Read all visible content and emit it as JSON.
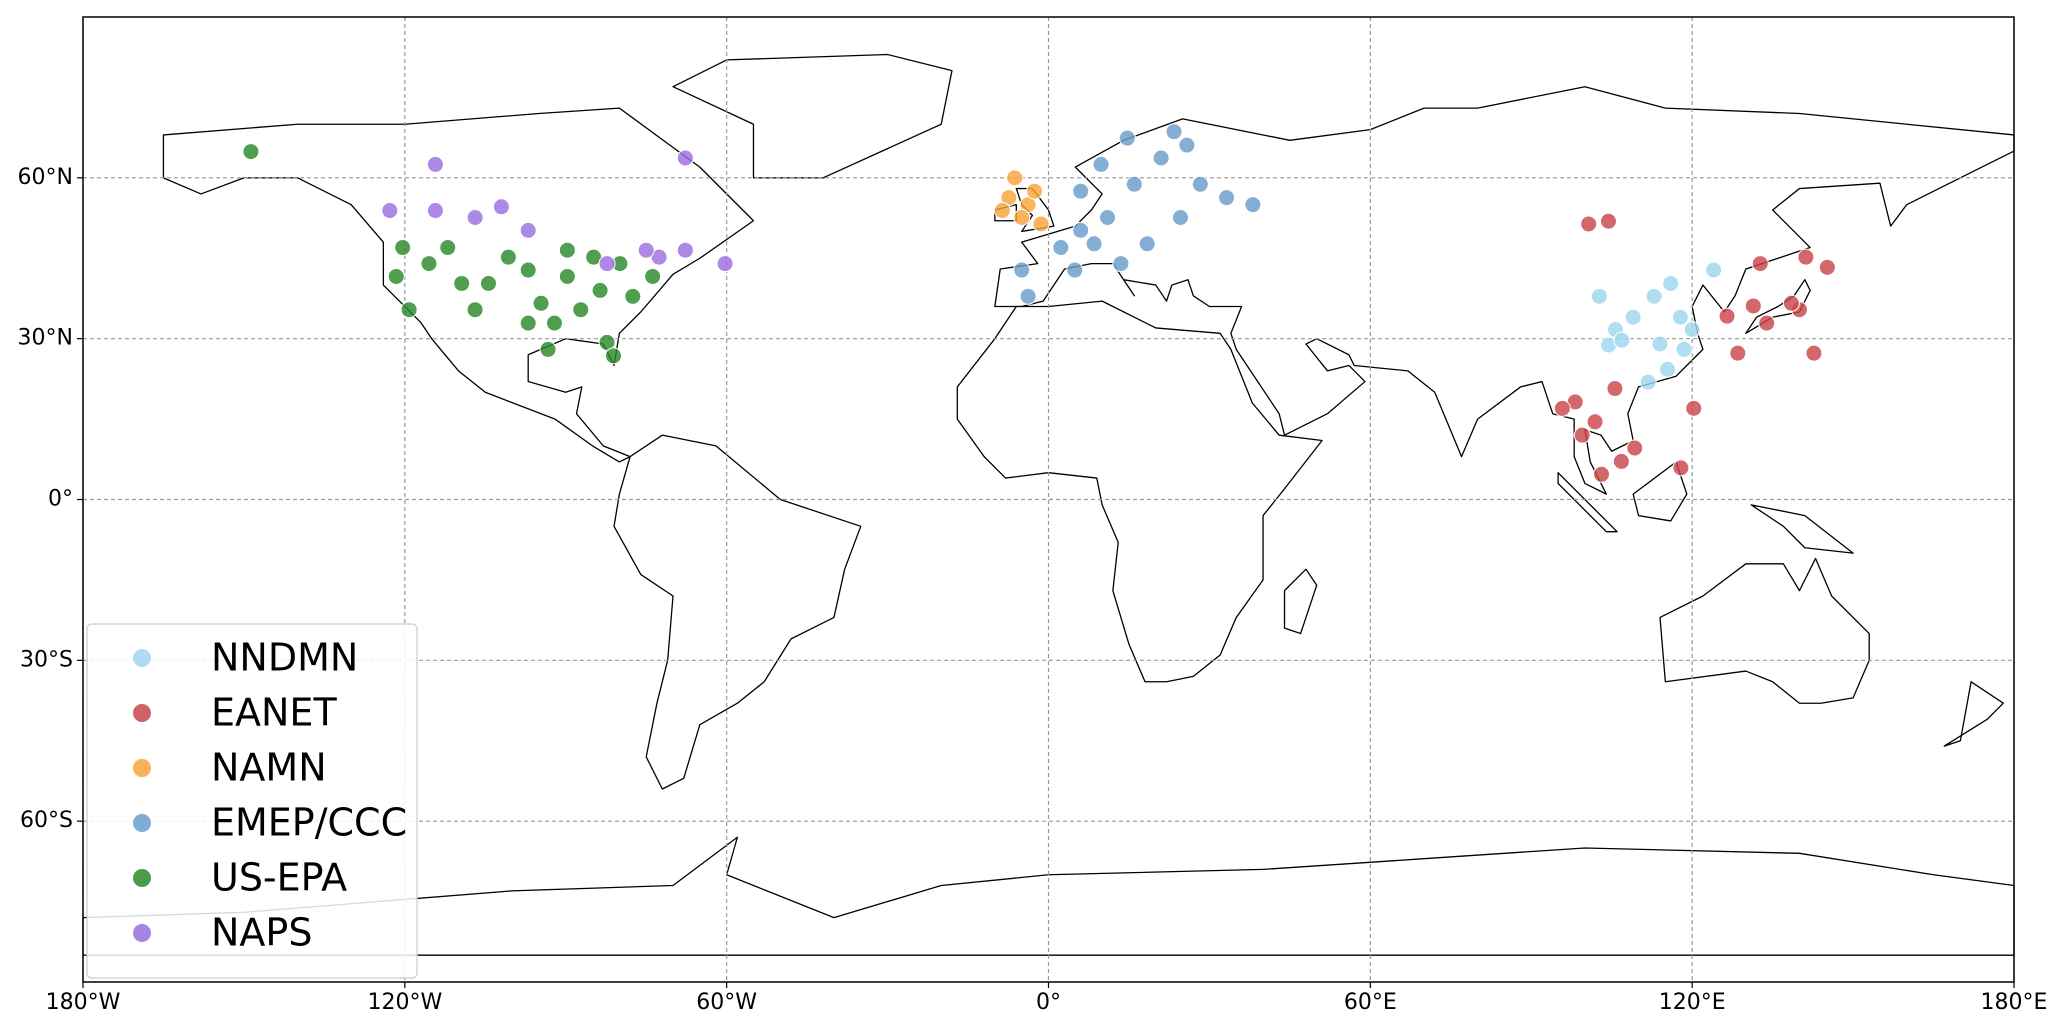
{
  "chart_data": {
    "type": "scatter",
    "xlim": [
      -180,
      180
    ],
    "ylim": [
      -90,
      90
    ],
    "xticks": [
      {
        "value": -180,
        "label": "180°W"
      },
      {
        "value": -120,
        "label": "120°W"
      },
      {
        "value": -60,
        "label": "60°W"
      },
      {
        "value": 0,
        "label": "0°"
      },
      {
        "value": 60,
        "label": "60°E"
      },
      {
        "value": 120,
        "label": "120°E"
      },
      {
        "value": 180,
        "label": "180°E"
      }
    ],
    "yticks": [
      {
        "value": 60,
        "label": "60°N"
      },
      {
        "value": 30,
        "label": "30°N"
      },
      {
        "value": 0,
        "label": "0°"
      },
      {
        "value": -30,
        "label": "30°S"
      },
      {
        "value": -60,
        "label": "60°S"
      }
    ],
    "grid": true,
    "legend": "lower left",
    "series": [
      {
        "name": "NNDMN",
        "color": "#9fd7ee",
        "x": [
          102.7,
          105.7,
          109,
          112.9,
          116,
          117.8,
          114,
          120,
          104.4,
          124,
          111.8,
          115.4,
          106.9,
          118.5
        ],
        "values": [
          37.9,
          31.7,
          34,
          37.9,
          40.3,
          34,
          29,
          31.7,
          28.8,
          42.8,
          21.9,
          24.3,
          29.7,
          28
        ]
      },
      {
        "name": "EANET",
        "color": "#c8474b",
        "x": [
          100.7,
          104.4,
          133.9,
          140,
          141.2,
          138.5,
          145.2,
          142.7,
          128.5,
          132.7,
          126.5,
          131.4,
          98.2,
          101.9,
          105.6,
          109.3,
          103.1,
          106.8,
          120.3,
          117.9,
          99.5,
          95.8
        ],
        "values": [
          51.4,
          51.9,
          32.9,
          35.4,
          45.2,
          36.6,
          43.3,
          27.3,
          27.3,
          44,
          34.2,
          36.1,
          18.2,
          14.5,
          20.7,
          9.6,
          4.7,
          7.1,
          17,
          5.9,
          12,
          17
        ]
      },
      {
        "name": "NAMN",
        "color": "#f9a33a",
        "x": [
          -6.3,
          -3.8,
          -5,
          -2.6,
          -1.4,
          -7.4,
          -8.6
        ],
        "values": [
          60,
          55,
          52.6,
          57.5,
          51.4,
          56.3,
          53.9
        ]
      },
      {
        "name": "EMEP/CCC",
        "color": "#6a9ccb",
        "x": [
          -5,
          -3.8,
          2.3,
          6,
          11,
          8.5,
          13.5,
          16,
          21,
          25.8,
          28.3,
          24.6,
          18.4,
          33.2,
          38.1,
          9.8,
          4.9,
          6,
          14.7,
          23.4
        ],
        "values": [
          42.8,
          37.9,
          47,
          50.2,
          52.6,
          47.7,
          44,
          58.8,
          63.7,
          66.1,
          58.8,
          52.6,
          47.7,
          56.3,
          55,
          62.5,
          42.8,
          57.5,
          67.4,
          68.6
        ]
      },
      {
        "name": "US-EPA",
        "color": "#2a8a2a",
        "x": [
          -121.6,
          -119.2,
          -115.5,
          -112,
          -109.4,
          -106.9,
          -104.4,
          -97,
          -94.6,
          -89.7,
          -87.2,
          -83.6,
          -79.9,
          -77.5,
          -73.8,
          -82.3,
          -93.3,
          -97,
          -100.7,
          -148.7,
          -84.8,
          -92.1,
          -89.7,
          -81.1,
          -120.4
        ],
        "values": [
          41.6,
          35.4,
          44,
          47,
          40.3,
          35.4,
          40.3,
          42.8,
          36.6,
          41.6,
          35.4,
          39,
          44,
          37.9,
          41.6,
          29.3,
          28,
          32.9,
          45.2,
          64.9,
          45.2,
          32.9,
          46.5,
          26.8,
          47
        ]
      },
      {
        "name": "NAPS",
        "color": "#9b6ee0",
        "x": [
          -114.3,
          -122.8,
          -114.3,
          -102,
          -97,
          -67.7,
          -72.6,
          -67.7,
          -60.3,
          -75,
          -106.9,
          -82.3
        ],
        "values": [
          62.5,
          53.9,
          53.9,
          54.6,
          50.2,
          63.7,
          45.2,
          46.5,
          44,
          46.5,
          52.6,
          44
        ]
      }
    ]
  }
}
